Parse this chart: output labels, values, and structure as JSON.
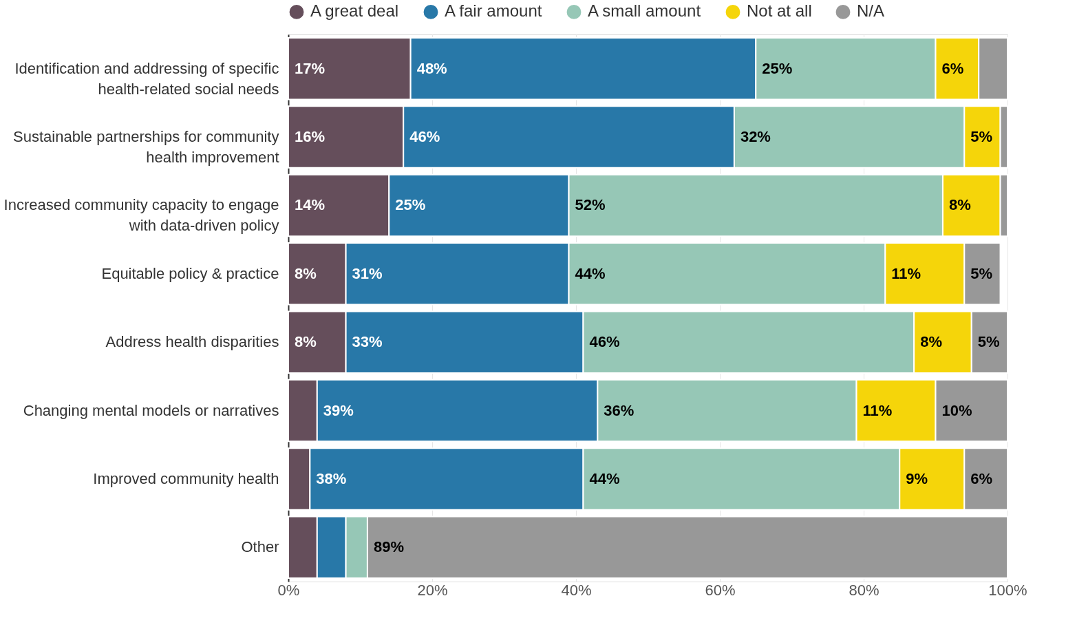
{
  "chart_data": {
    "type": "bar",
    "orientation": "horizontal",
    "stacked": true,
    "legend": "top",
    "grid": "x",
    "xlim": [
      0,
      100
    ],
    "xticks": [
      {
        "value": 0,
        "label": "0%"
      },
      {
        "value": 20,
        "label": "20%"
      },
      {
        "value": 40,
        "label": "40%"
      },
      {
        "value": 60,
        "label": "60%"
      },
      {
        "value": 80,
        "label": "80%"
      },
      {
        "value": 100,
        "label": "100%"
      }
    ],
    "categories": [
      "Identification and addressing of specific health-related social needs",
      "Sustainable partnerships for community health improvement",
      "Increased community capacity to engage with data-driven policy",
      "Equitable policy & practice",
      "Address health disparities",
      "Changing mental models or narratives",
      "Improved community health",
      "Other"
    ],
    "series": [
      {
        "name": "A great deal",
        "color": "#654e5b",
        "values": [
          17,
          16,
          14,
          8,
          8,
          4,
          3,
          4
        ],
        "value_labels": [
          "17%",
          "16%",
          "14%",
          "8%",
          "8%",
          null,
          null,
          null
        ]
      },
      {
        "name": "A fair amount",
        "color": "#2878a8",
        "values": [
          48,
          46,
          25,
          31,
          33,
          39,
          38,
          4
        ],
        "value_labels": [
          "48%",
          "46%",
          "25%",
          "31%",
          "33%",
          "39%",
          "38%",
          null
        ]
      },
      {
        "name": "A small amount",
        "color": "#96c7b6",
        "values": [
          25,
          32,
          52,
          44,
          46,
          36,
          44,
          3
        ],
        "value_labels": [
          "25%",
          "32%",
          "52%",
          "44%",
          "46%",
          "36%",
          "44%",
          null
        ]
      },
      {
        "name": "Not at all",
        "color": "#f5d50a",
        "values": [
          6,
          5,
          8,
          11,
          8,
          11,
          9,
          0
        ],
        "value_labels": [
          "6%",
          "5%",
          "8%",
          "11%",
          "8%",
          "11%",
          "9%",
          null
        ]
      },
      {
        "name": "N/A",
        "color": "#989898",
        "values": [
          4,
          1,
          1,
          5,
          5,
          10,
          6,
          89
        ],
        "value_labels": [
          null,
          null,
          null,
          "5%",
          "5%",
          "10%",
          "6%",
          "89%"
        ]
      }
    ]
  }
}
